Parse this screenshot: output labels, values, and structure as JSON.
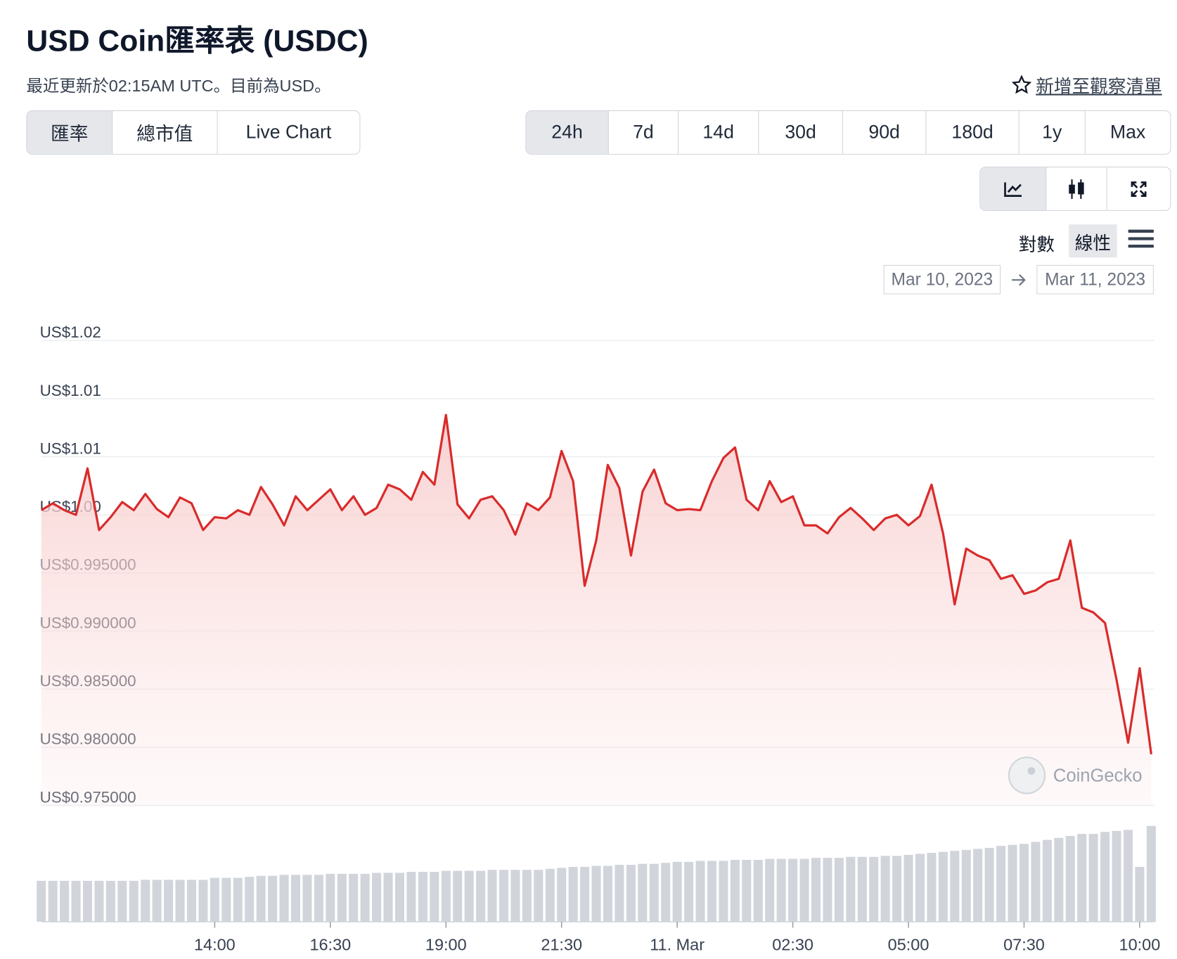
{
  "header": {
    "title": "USD Coin匯率表 (USDC)",
    "subtitle": "最近更新於02:15AM UTC。目前為USD。",
    "watchlist": "新增至觀察清單"
  },
  "tabs": [
    "匯率",
    "總市值",
    "Live Chart"
  ],
  "ranges": [
    "24h",
    "7d",
    "14d",
    "30d",
    "90d",
    "180d",
    "1y",
    "Max"
  ],
  "scale_options": [
    "對數",
    "線性"
  ],
  "date_range": {
    "from": "Mar 10, 2023",
    "to": "Mar 11, 2023"
  },
  "watermark": "CoinGecko",
  "chart_data": {
    "type": "line",
    "color": "#d92b2b",
    "grid": true,
    "xlim": [
      10.25,
      34.32
    ],
    "xticks": [
      {
        "value": 14,
        "label": "14:00"
      },
      {
        "value": 16.5,
        "label": "16:30"
      },
      {
        "value": 19,
        "label": "19:00"
      },
      {
        "value": 21.5,
        "label": "21:30"
      },
      {
        "value": 24,
        "label": "11. Mar"
      },
      {
        "value": 26.5,
        "label": "02:30"
      },
      {
        "value": 29,
        "label": "05:00"
      },
      {
        "value": 31.5,
        "label": "07:30"
      },
      {
        "value": 34,
        "label": "10:00"
      }
    ],
    "ylim": [
      0.975,
      1.0175
    ],
    "yticks": [
      {
        "value": 0.975,
        "label": "US$0.975000"
      },
      {
        "value": 0.98,
        "label": "US$0.980000"
      },
      {
        "value": 0.985,
        "label": "US$0.985000"
      },
      {
        "value": 0.99,
        "label": "US$0.990000"
      },
      {
        "value": 0.995,
        "label": "US$0.995000"
      },
      {
        "value": 1.0,
        "label": "US$1.00"
      },
      {
        "value": 1.005,
        "label": "US$1.01"
      },
      {
        "value": 1.01,
        "label": "US$1.01"
      },
      {
        "value": 1.015,
        "label": "US$1.02"
      }
    ],
    "x": [
      10.25,
      10.5,
      10.75,
      11,
      11.25,
      11.5,
      11.75,
      12,
      12.25,
      12.5,
      12.75,
      13,
      13.25,
      13.5,
      13.75,
      14,
      14.25,
      14.5,
      14.75,
      15,
      15.25,
      15.5,
      15.75,
      16,
      16.25,
      16.5,
      16.75,
      17,
      17.25,
      17.5,
      17.75,
      18,
      18.25,
      18.5,
      18.75,
      19,
      19.25,
      19.5,
      19.75,
      20,
      20.25,
      20.5,
      20.75,
      21,
      21.25,
      21.5,
      21.75,
      22,
      22.25,
      22.5,
      22.75,
      23,
      23.25,
      23.5,
      23.75,
      24,
      24.25,
      24.5,
      24.75,
      25,
      25.25,
      25.5,
      25.75,
      26,
      26.25,
      26.5,
      26.75,
      27,
      27.25,
      27.5,
      27.75,
      28,
      28.25,
      28.5,
      28.75,
      29,
      29.25,
      29.5,
      29.75,
      30,
      30.25,
      30.5,
      30.75,
      31,
      31.25,
      31.5,
      31.75,
      32,
      32.25,
      32.5,
      32.75,
      33,
      33.25,
      33.5,
      33.75,
      34,
      34.25
    ],
    "values": [
      1.0004,
      1.001,
      1.0004,
      1.0,
      1.004,
      0.9987,
      0.9998,
      1.0011,
      1.0004,
      1.0018,
      1.0005,
      0.9998,
      1.0015,
      1.001,
      0.9987,
      0.9998,
      0.9997,
      1.0004,
      1.0,
      1.0024,
      1.0009,
      0.9991,
      1.0016,
      1.0004,
      1.0013,
      1.0022,
      1.0004,
      1.0016,
      1.0,
      1.0006,
      1.0026,
      1.0022,
      1.0013,
      1.0037,
      1.0026,
      1.0086,
      1.0009,
      0.9997,
      1.0013,
      1.0016,
      1.0004,
      0.9983,
      1.001,
      1.0004,
      1.0015,
      1.0055,
      1.0029,
      0.9939,
      0.9978,
      1.0043,
      1.0023,
      0.9965,
      1.002,
      1.0039,
      1.001,
      1.0004,
      1.0005,
      1.0004,
      1.0029,
      1.0049,
      1.0058,
      1.0013,
      1.0004,
      1.0029,
      1.0011,
      1.0016,
      0.9991,
      0.9991,
      0.9984,
      0.9998,
      1.0006,
      0.9997,
      0.9987,
      0.9997,
      1.0,
      0.9991,
      0.9999,
      1.0026,
      0.9984,
      0.9923,
      0.9971,
      0.9965,
      0.9961,
      0.9945,
      0.9948,
      0.9932,
      0.9935,
      0.9942,
      0.9945,
      0.9978,
      0.992,
      0.9916,
      0.9907,
      0.9858,
      0.9804,
      0.9868,
      0.9794
    ],
    "volume_color": "#d1d5db",
    "vlim": [
      0,
      100
    ],
    "volume": [
      41,
      41,
      41,
      41,
      41,
      41,
      41,
      41,
      41,
      42,
      42,
      42,
      42,
      42,
      42,
      44,
      44,
      44,
      45,
      46,
      46,
      47,
      47,
      47,
      47,
      48,
      48,
      48,
      48,
      49,
      49,
      49,
      50,
      50,
      50,
      51,
      51,
      51,
      51,
      52,
      52,
      52,
      52,
      52,
      53,
      54,
      55,
      55,
      56,
      56,
      57,
      57,
      58,
      58,
      59,
      60,
      60,
      61,
      61,
      61,
      62,
      62,
      62,
      63,
      63,
      63,
      63,
      64,
      64,
      64,
      65,
      65,
      65,
      66,
      66,
      67,
      68,
      69,
      70,
      71,
      72,
      73,
      74,
      76,
      77,
      78,
      80,
      82,
      84,
      86,
      88,
      88,
      90,
      91,
      92,
      55,
      96
    ]
  }
}
